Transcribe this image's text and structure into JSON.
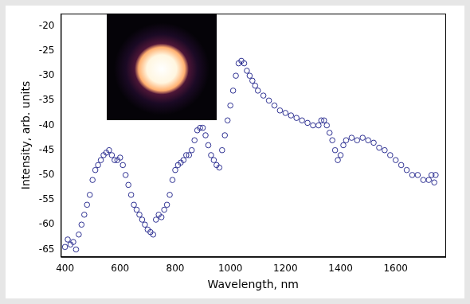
{
  "chart_data": {
    "type": "scatter",
    "x_label": "Wavelength, nm",
    "y_label": "Intensity, arb. units",
    "color": "#2e3192",
    "marker": "circle_open",
    "grid": false,
    "xlim": [
      385,
      1780
    ],
    "ylim": [
      -66.5,
      -17.5
    ],
    "xticks": [
      400,
      600,
      800,
      1000,
      1200,
      1400,
      1600
    ],
    "yticks": [
      -65,
      -60,
      -55,
      -50,
      -45,
      -40,
      -35,
      -30,
      -25,
      -20
    ],
    "x": [
      400,
      410,
      420,
      430,
      440,
      450,
      460,
      470,
      480,
      490,
      500,
      510,
      520,
      530,
      540,
      550,
      560,
      570,
      580,
      590,
      600,
      610,
      620,
      630,
      640,
      650,
      660,
      670,
      680,
      690,
      700,
      710,
      720,
      730,
      740,
      750,
      760,
      770,
      780,
      790,
      800,
      810,
      820,
      830,
      840,
      850,
      860,
      870,
      880,
      890,
      900,
      910,
      920,
      930,
      940,
      950,
      960,
      970,
      980,
      990,
      1000,
      1010,
      1020,
      1030,
      1040,
      1050,
      1060,
      1070,
      1080,
      1090,
      1100,
      1120,
      1140,
      1160,
      1180,
      1200,
      1220,
      1240,
      1260,
      1280,
      1300,
      1320,
      1330,
      1340,
      1350,
      1360,
      1370,
      1380,
      1390,
      1400,
      1410,
      1420,
      1440,
      1460,
      1480,
      1500,
      1520,
      1540,
      1560,
      1580,
      1600,
      1620,
      1640,
      1660,
      1680,
      1700,
      1720,
      1730,
      1740,
      1745
    ],
    "values": [
      -64.5,
      -63,
      -64,
      -63.5,
      -65,
      -62,
      -60,
      -58,
      -56,
      -54,
      -51,
      -49,
      -48,
      -47,
      -46,
      -45.5,
      -45,
      -46,
      -47,
      -47,
      -46.5,
      -48,
      -50,
      -52,
      -54,
      -56,
      -57,
      -58,
      -59,
      -60,
      -61,
      -61.5,
      -62,
      -59,
      -58,
      -58.5,
      -57,
      -56,
      -54,
      -51,
      -49,
      -48,
      -47.5,
      -47,
      -46,
      -46,
      -45,
      -43,
      -41,
      -40.5,
      -40.5,
      -42,
      -44,
      -46,
      -47,
      -48,
      -48.5,
      -45,
      -42,
      -39,
      -36,
      -33,
      -30,
      -27.5,
      -27,
      -27.5,
      -29,
      -30,
      -31,
      -32,
      -33,
      -34,
      -35,
      -36,
      -37,
      -37.5,
      -38,
      -38.5,
      -39,
      -39.5,
      -40,
      -40,
      -39,
      -39,
      -40,
      -41.5,
      -43,
      -45,
      -47,
      -46,
      -44,
      -43,
      -42.5,
      -43,
      -42.5,
      -43,
      -43.5,
      -44.5,
      -45,
      -46,
      -47,
      -48,
      -49,
      -50,
      -50,
      -51,
      -51,
      -50,
      -51.5,
      -50
    ]
  }
}
